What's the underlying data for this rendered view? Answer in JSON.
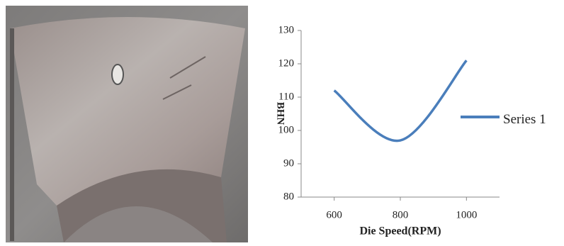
{
  "chart_data": {
    "type": "line",
    "x_label": "Die Speed(RPM)",
    "y_label": "BHN",
    "x": [
      600,
      800,
      1000
    ],
    "series": [
      {
        "name": "Series 1",
        "color": "#4a7ebb",
        "values": [
          112,
          97,
          121
        ]
      }
    ],
    "xlim": [
      500,
      1100
    ],
    "xticks": [
      600,
      800,
      1000
    ],
    "ylim": [
      80,
      130
    ],
    "yticks": [
      80,
      90,
      100,
      110,
      120,
      130
    ],
    "grid": false,
    "legend": "right",
    "smooth": true
  }
}
